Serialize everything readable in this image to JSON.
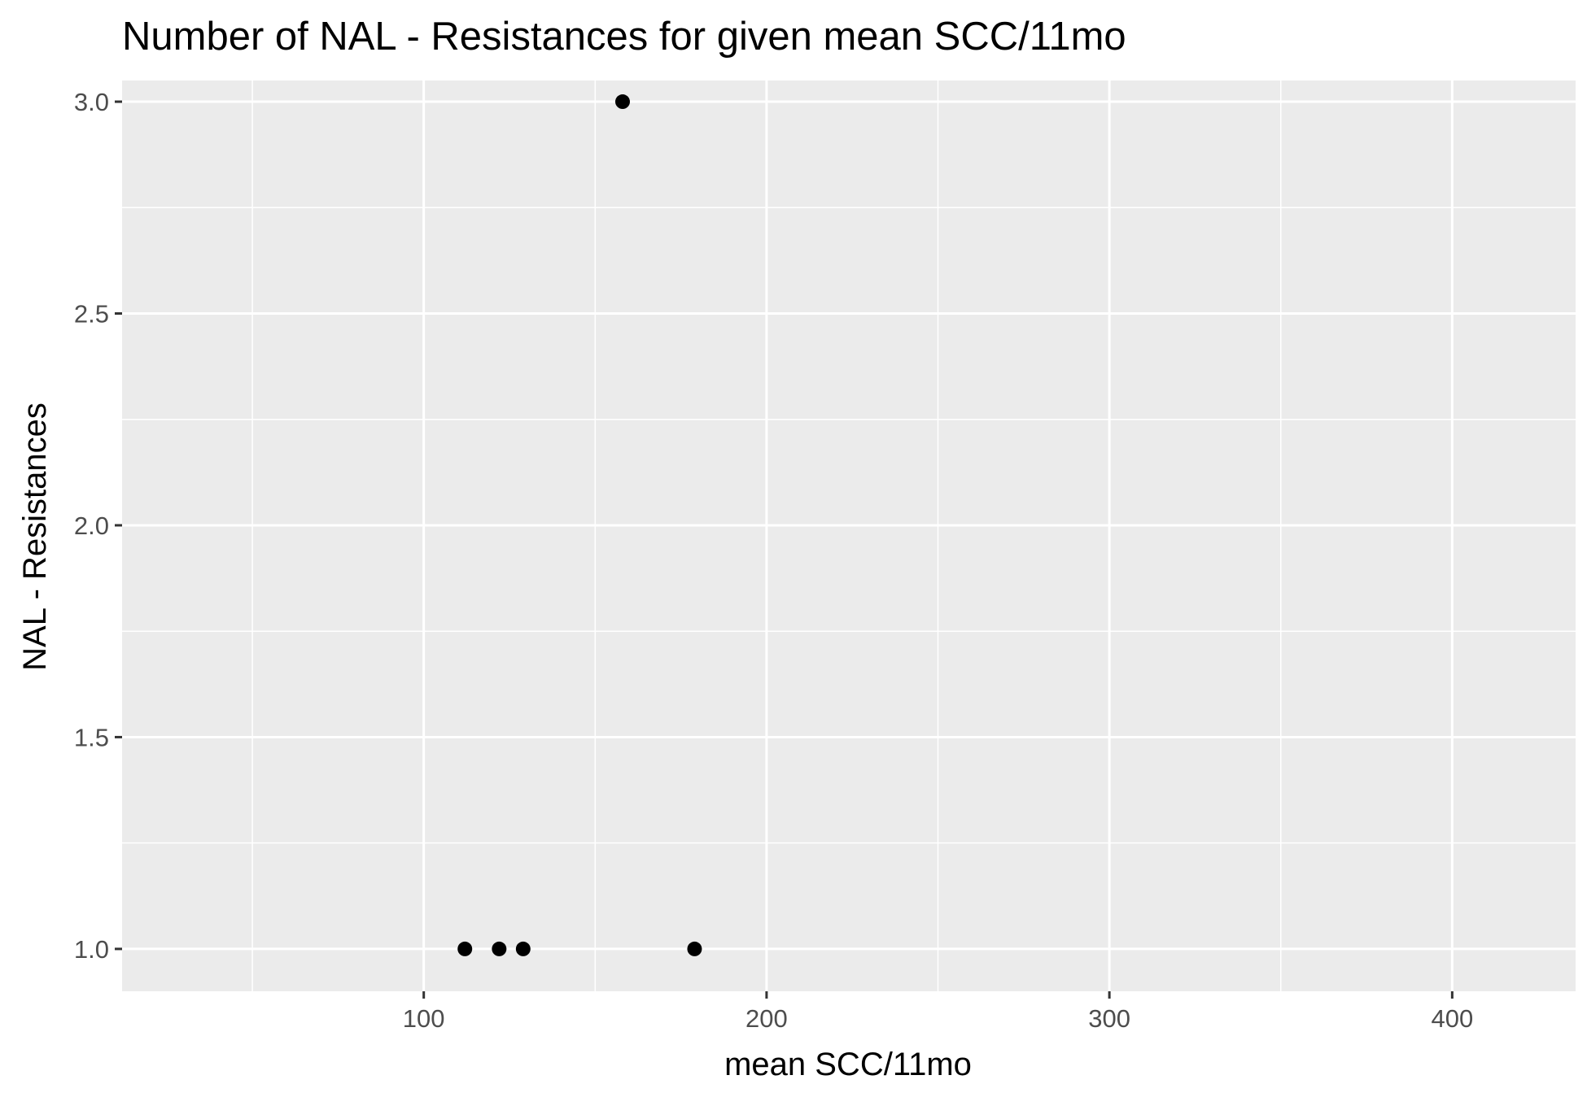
{
  "chart_data": {
    "type": "scatter",
    "title": "Number of NAL - Resistances for given mean SCC/11mo",
    "xlabel": "mean SCC/11mo",
    "ylabel": "NAL - Resistances",
    "xlim": [
      12,
      436
    ],
    "ylim": [
      0.9,
      3.05
    ],
    "x_ticks": [
      100,
      200,
      300,
      400
    ],
    "x_tick_labels": [
      "100",
      "200",
      "300",
      "400"
    ],
    "y_ticks": [
      1.0,
      1.5,
      2.0,
      2.5,
      3.0
    ],
    "y_tick_labels": [
      "1.0",
      "1.5",
      "2.0",
      "2.5",
      "3.0"
    ],
    "grid": true,
    "points": [
      {
        "x": 112,
        "y": 1
      },
      {
        "x": 122,
        "y": 1
      },
      {
        "x": 129,
        "y": 1
      },
      {
        "x": 158,
        "y": 3
      },
      {
        "x": 179,
        "y": 1
      }
    ]
  },
  "style": {
    "panel_bg": "#ebebeb",
    "grid_color": "#ffffff",
    "point_color": "#000000",
    "tick_color": "#333333"
  }
}
